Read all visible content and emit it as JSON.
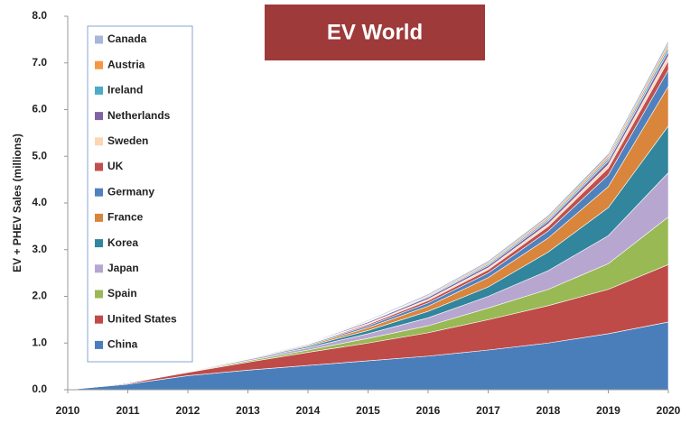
{
  "chart_data": {
    "type": "stacked_area",
    "title": "EV World",
    "y_label": "EV + PHEV Sales (millions)",
    "x": [
      2010,
      2011,
      2012,
      2013,
      2014,
      2015,
      2016,
      2017,
      2018,
      2019,
      2020
    ],
    "xlim": [
      2010,
      2020
    ],
    "xticks": [
      2010,
      2011,
      2012,
      2013,
      2014,
      2015,
      2016,
      2017,
      2018,
      2019,
      2020
    ],
    "ylim": [
      0,
      8
    ],
    "yticks": [
      {
        "value": 0,
        "label": "0.0"
      },
      {
        "value": 1,
        "label": "1.0"
      },
      {
        "value": 2,
        "label": "2.0"
      },
      {
        "value": 3,
        "label": "3.0"
      },
      {
        "value": 4,
        "label": "4.0"
      },
      {
        "value": 5,
        "label": "5.0"
      },
      {
        "value": 6,
        "label": "6.0"
      },
      {
        "value": 7,
        "label": "7.0"
      },
      {
        "value": 8,
        "label": "8.0"
      }
    ],
    "grid": false,
    "legend": "upper left",
    "series": [
      {
        "name": "China",
        "color": "#4a7ebb",
        "values": [
          0,
          0.12,
          0.3,
          0.42,
          0.52,
          0.62,
          0.72,
          0.85,
          1.0,
          1.2,
          1.45
        ]
      },
      {
        "name": "United States",
        "color": "#be4b48",
        "values": [
          0,
          0.02,
          0.07,
          0.17,
          0.28,
          0.38,
          0.5,
          0.65,
          0.8,
          0.95,
          1.23
        ]
      },
      {
        "name": "Spain",
        "color": "#98b954",
        "values": [
          0,
          0,
          0.01,
          0.03,
          0.05,
          0.1,
          0.15,
          0.25,
          0.35,
          0.55,
          1.02
        ]
      },
      {
        "name": "Japan",
        "color": "#b7a6d0",
        "values": [
          0,
          0,
          0.01,
          0.03,
          0.05,
          0.1,
          0.17,
          0.25,
          0.4,
          0.6,
          0.95
        ]
      },
      {
        "name": "Korea",
        "color": "#31859c",
        "values": [
          0,
          0,
          0,
          0.01,
          0.03,
          0.07,
          0.14,
          0.2,
          0.4,
          0.6,
          1.0
        ]
      },
      {
        "name": "France",
        "color": "#d9853b",
        "values": [
          0,
          0,
          0,
          0.01,
          0.02,
          0.06,
          0.11,
          0.2,
          0.3,
          0.45,
          0.85
        ]
      },
      {
        "name": "Germany",
        "color": "#4f81bd",
        "values": [
          0,
          0,
          0,
          0.01,
          0.02,
          0.04,
          0.07,
          0.1,
          0.15,
          0.25,
          0.35
        ]
      },
      {
        "name": "UK",
        "color": "#c0504d",
        "values": [
          0,
          0,
          0,
          0.01,
          0.01,
          0.03,
          0.05,
          0.07,
          0.1,
          0.15,
          0.2
        ]
      },
      {
        "name": "Sweden",
        "color": "#fcd5b5",
        "values": [
          0,
          0,
          0,
          0,
          0.01,
          0.02,
          0.03,
          0.04,
          0.05,
          0.07,
          0.1
        ]
      },
      {
        "name": "Netherlands",
        "color": "#8064a2",
        "values": [
          0,
          0,
          0,
          0.01,
          0.01,
          0.03,
          0.04,
          0.05,
          0.06,
          0.08,
          0.1
        ]
      },
      {
        "name": "Ireland",
        "color": "#4bacc6",
        "values": [
          0,
          0,
          0,
          0,
          0,
          0.01,
          0.02,
          0.03,
          0.04,
          0.05,
          0.08
        ]
      },
      {
        "name": "Austria",
        "color": "#f79646",
        "values": [
          0,
          0,
          0,
          0,
          0,
          0.01,
          0.02,
          0.03,
          0.04,
          0.05,
          0.07
        ]
      },
      {
        "name": "Canada",
        "color": "#a6b7d7",
        "values": [
          0,
          0,
          0,
          0,
          0.01,
          0.02,
          0.03,
          0.04,
          0.05,
          0.06,
          0.08
        ]
      }
    ]
  }
}
